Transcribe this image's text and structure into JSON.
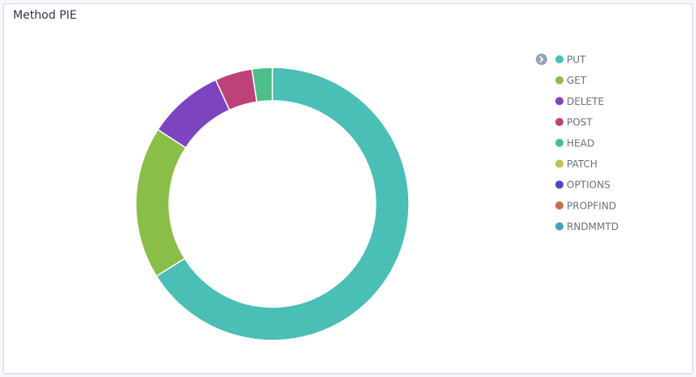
{
  "chart_data": {
    "type": "donut",
    "title": "Method PIE",
    "categories": [
      "PUT",
      "GET",
      "DELETE",
      "POST",
      "HEAD",
      "PATCH",
      "OPTIONS",
      "PROPFIND",
      "RNDMMTD"
    ],
    "values": [
      66,
      18,
      9,
      4.4,
      2.4,
      0,
      0,
      0,
      0
    ],
    "colors": [
      "#4ABFB6",
      "#8BBE48",
      "#7C45BF",
      "#BD4279",
      "#4DBF89",
      "#BEC24C",
      "#4A49BE",
      "#C0704A",
      "#4A9CBF"
    ],
    "legend": "right"
  }
}
